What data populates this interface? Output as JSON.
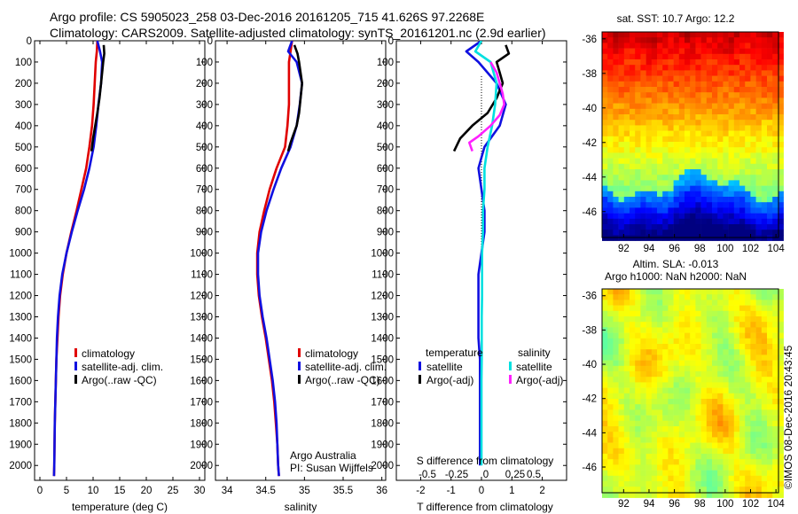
{
  "header": {
    "line1": "Argo profile: CS 5905023_258 03-Dec-2016 20161205_715 41.626S 97.2268E",
    "line2": "Climatology: CARS2009. Satellite-adjusted climatology: synTS_20161201.nc (2.9d earlier)"
  },
  "colors": {
    "climatology": "#e00000",
    "satellite": "#1010e0",
    "argo": "#000000",
    "satellite_salinity": "#00e0e0",
    "argo_salinity": "#ff20ff"
  },
  "chart_data": [
    {
      "type": "line",
      "panel": "temperature",
      "xlabel": "temperature (deg C)",
      "ylabel": "",
      "xlim": [
        -1,
        31
      ],
      "ylim": [
        2070,
        0
      ],
      "xticks": [
        0,
        5,
        10,
        15,
        20,
        25,
        30
      ],
      "yticks": [
        0,
        100,
        200,
        300,
        400,
        500,
        600,
        700,
        800,
        900,
        1000,
        1100,
        1200,
        1300,
        1400,
        1500,
        1600,
        1700,
        1800,
        1900,
        2000
      ],
      "legend": [
        "climatology",
        "satellite-adj. clim.",
        "Argo(..raw -QC)"
      ],
      "series": [
        {
          "name": "climatology",
          "color": "#e00000",
          "x": [
            10.8,
            10.7,
            10.5,
            10.3,
            10.1,
            9.8,
            9.3,
            8.7,
            7.8,
            6.9,
            5.9,
            5.0,
            4.3,
            3.8,
            3.5,
            3.3,
            3.1,
            3.0,
            2.9,
            2.8,
            2.75,
            2.7,
            2.65
          ],
          "y": [
            0,
            50,
            100,
            200,
            300,
            400,
            500,
            600,
            700,
            800,
            900,
            1000,
            1100,
            1200,
            1300,
            1400,
            1500,
            1600,
            1700,
            1800,
            1900,
            2000,
            2050
          ]
        },
        {
          "name": "satellite-adj. clim.",
          "color": "#1010e0",
          "x": [
            10.8,
            11.3,
            11.7,
            11.5,
            11.0,
            10.6,
            10.1,
            9.3,
            8.3,
            7.1,
            6.0,
            5.0,
            4.2,
            3.7,
            3.4,
            3.2,
            3.1,
            3.0,
            2.9,
            2.8,
            2.75,
            2.7,
            2.65
          ],
          "y": [
            0,
            50,
            100,
            200,
            300,
            400,
            500,
            600,
            700,
            800,
            900,
            1000,
            1100,
            1200,
            1300,
            1400,
            1500,
            1600,
            1700,
            1800,
            1900,
            2000,
            2050
          ]
        },
        {
          "name": "Argo(..raw -QC)",
          "color": "#000000",
          "x": [
            12.0,
            12.1,
            11.9,
            11.7,
            11.5,
            11.2,
            10.8,
            10.4,
            10.0,
            9.7
          ],
          "y": [
            20,
            60,
            100,
            150,
            200,
            270,
            340,
            400,
            460,
            520
          ]
        }
      ]
    },
    {
      "type": "line",
      "panel": "salinity",
      "xlabel": "salinity",
      "xlim": [
        33.85,
        36.05
      ],
      "ylim": [
        2070,
        0
      ],
      "xticks": [
        34,
        34.5,
        35,
        35.5,
        36
      ],
      "legend": [
        "climatology",
        "satellite-adj. clim.",
        "Argo(..raw -QC)"
      ],
      "annotation": [
        "Argo Australia",
        "PI: Susan Wijffels"
      ],
      "series": [
        {
          "name": "climatology",
          "color": "#e00000",
          "x": [
            34.84,
            34.82,
            34.8,
            34.8,
            34.8,
            34.78,
            34.75,
            34.64,
            34.55,
            34.48,
            34.42,
            34.39,
            34.39,
            34.41,
            34.45,
            34.5,
            34.54,
            34.58,
            34.61,
            34.63,
            34.65,
            34.66,
            34.67
          ],
          "y": [
            0,
            50,
            100,
            200,
            300,
            400,
            500,
            600,
            700,
            800,
            900,
            1000,
            1100,
            1200,
            1300,
            1400,
            1500,
            1600,
            1700,
            1800,
            1900,
            2000,
            2050
          ]
        },
        {
          "name": "satellite-adj. clim.",
          "color": "#1010e0",
          "x": [
            34.84,
            34.79,
            34.9,
            34.97,
            34.94,
            34.9,
            34.82,
            34.7,
            34.6,
            34.51,
            34.44,
            34.4,
            34.4,
            34.42,
            34.46,
            34.51,
            34.55,
            34.59,
            34.62,
            34.64,
            34.65,
            34.66,
            34.67
          ],
          "y": [
            0,
            50,
            100,
            200,
            300,
            400,
            500,
            600,
            700,
            800,
            900,
            1000,
            1100,
            1200,
            1300,
            1400,
            1500,
            1600,
            1700,
            1800,
            1900,
            2000,
            2050
          ]
        },
        {
          "name": "Argo(..raw -QC)",
          "color": "#000000",
          "x": [
            34.87,
            34.91,
            34.93,
            34.95,
            34.97,
            34.95,
            34.93,
            34.9,
            34.86,
            34.82,
            34.79
          ],
          "y": [
            20,
            60,
            100,
            150,
            200,
            270,
            340,
            400,
            440,
            480,
            520
          ]
        }
      ]
    },
    {
      "type": "line",
      "panel": "difference",
      "xlabel": "T difference from climatology",
      "xlabel2": "S difference from climatology",
      "xlim": [
        -2.8,
        2.8
      ],
      "ylim": [
        2070,
        0
      ],
      "xticks": [
        -2,
        -1,
        0,
        1,
        2
      ],
      "xticks_salinity": [
        "-0.5",
        "-0.25",
        "0",
        "0.25",
        "0.5"
      ],
      "legend_headers": [
        "temperature",
        "salinity"
      ],
      "legend": [
        "satellite",
        "Argo(-adj)",
        "satellite",
        "Argo(-adj)"
      ],
      "series": [
        {
          "name": "satellite",
          "quantity": "temperature",
          "color": "#1010e0",
          "x": [
            0,
            -0.5,
            -0.1,
            0.5,
            0.8,
            0.6,
            0.1,
            -0.1,
            0.0,
            0.1,
            0.1,
            0.0,
            -0.1,
            -0.1,
            -0.1,
            -0.1,
            -0.05,
            -0.05,
            -0.05,
            -0.05,
            -0.05,
            -0.05
          ],
          "y": [
            0,
            50,
            100,
            200,
            300,
            400,
            500,
            600,
            700,
            800,
            900,
            1000,
            1100,
            1200,
            1300,
            1400,
            1500,
            1600,
            1700,
            1800,
            1900,
            2000
          ]
        },
        {
          "name": "Argo(-adj)",
          "quantity": "temperature",
          "color": "#000000",
          "x": [
            0.8,
            0.9,
            0.5,
            0.6,
            0.7,
            0.5,
            0.2,
            -0.3,
            -0.7,
            -0.9
          ],
          "y": [
            20,
            60,
            100,
            150,
            200,
            270,
            340,
            400,
            460,
            520
          ]
        },
        {
          "name": "satellite",
          "quantity": "salinity",
          "color": "#00e0e0",
          "x": [
            0,
            -0.2,
            0.3,
            0.5,
            0.45,
            0.35,
            0.2,
            0.1,
            0.1,
            0.05,
            0.05,
            0.02,
            0.02,
            0.02,
            0.01,
            0.01,
            0.01,
            0.0,
            0.0,
            0.0,
            0.0,
            0.0
          ],
          "y": [
            0,
            50,
            100,
            200,
            300,
            400,
            500,
            600,
            700,
            800,
            900,
            1000,
            1100,
            1200,
            1300,
            1400,
            1500,
            1600,
            1700,
            1800,
            1900,
            2000
          ]
        },
        {
          "name": "Argo(-adj)",
          "quantity": "salinity",
          "color": "#ff20ff",
          "x": [
            0.3,
            0.5,
            0.6,
            0.7,
            0.75,
            0.6,
            0.3,
            -0.1,
            -0.4,
            -0.3
          ],
          "y": [
            100,
            150,
            200,
            250,
            300,
            350,
            400,
            450,
            480,
            520
          ]
        }
      ]
    },
    {
      "type": "heatmap",
      "panel": "sst_map",
      "title": "sat. SST: 10.7  Argo: 12.2",
      "xticks": [
        92,
        94,
        96,
        98,
        100,
        102,
        104
      ],
      "yticks": [
        -36,
        -38,
        -40,
        -42,
        -44,
        -46
      ],
      "xlim": [
        90.3,
        104.2
      ],
      "ylim": [
        -47.5,
        -35.6
      ]
    },
    {
      "type": "heatmap",
      "panel": "sla_map",
      "title": "Altim. SLA: -0.013",
      "subtitle": "Argo h1000: NaN  h2000: NaN",
      "xticks": [
        92,
        94,
        96,
        98,
        100,
        102,
        104
      ],
      "yticks": [
        -36,
        -38,
        -40,
        -42,
        -44,
        -46
      ],
      "xlim": [
        90.3,
        104.2
      ],
      "ylim": [
        -47.5,
        -35.6
      ]
    }
  ],
  "footer": {
    "stamp": "©IMOS 08-Dec-2016 20:43:45"
  }
}
